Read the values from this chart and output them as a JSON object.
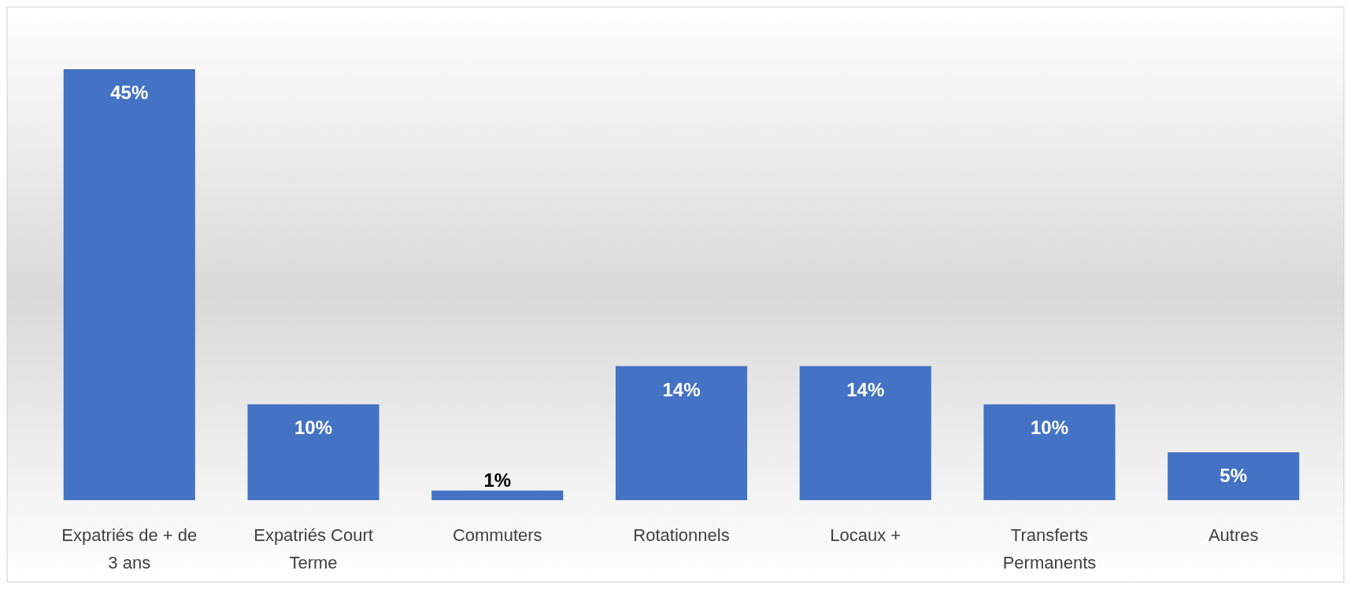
{
  "chart_data": {
    "type": "bar",
    "categories": [
      "Expatriés de + de 3 ans",
      "Expatriés Court Terme",
      "Commuters",
      "Rotationnels",
      "Locaux +",
      "Transferts Permanents",
      "Autres"
    ],
    "values": [
      45,
      10,
      1,
      14,
      14,
      10,
      5
    ],
    "color": "#4472c4",
    "data_labels": true,
    "value_labels": [
      "45%",
      "10%",
      "1%",
      "14%",
      "14%",
      "10%",
      "5%"
    ]
  }
}
